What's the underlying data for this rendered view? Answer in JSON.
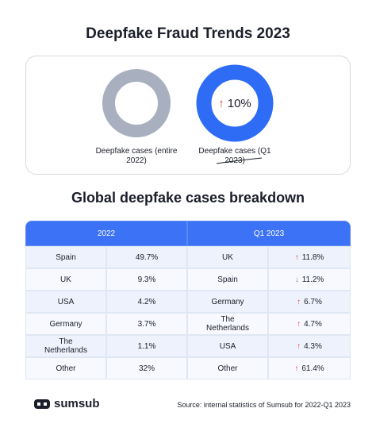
{
  "header": {
    "title": "Deepfake Fraud Trends 2023"
  },
  "donuts": [
    {
      "label": "Deepfake cases (entire 2022)"
    },
    {
      "arrow": "↑",
      "value": "10%",
      "label": "Deepfake cases (Q1 2023)"
    }
  ],
  "breakdown": {
    "title": "Global deepfake cases breakdown"
  },
  "table": {
    "left": {
      "header": "2022",
      "rows": [
        [
          "Spain",
          "49.7%"
        ],
        [
          "UK",
          "9.3%"
        ],
        [
          "USA",
          "4.2%"
        ],
        [
          "Germany",
          "3.7%"
        ],
        [
          "The Netherlands",
          "1.1%"
        ],
        [
          "Other",
          "32%"
        ]
      ]
    },
    "right": {
      "header": "Q1 2023",
      "rows": [
        [
          "UK",
          {
            "arrow": "↑",
            "value": "11.8%"
          }
        ],
        [
          "Spain",
          {
            "arrow": "↓",
            "value": "11.2%"
          }
        ],
        [
          "Germany",
          {
            "arrow": "↑",
            "value": "6.7%"
          }
        ],
        [
          "The Netherlands",
          {
            "arrow": "↑",
            "value": "4.7%"
          }
        ],
        [
          "USA",
          {
            "arrow": "↑",
            "value": "4.3%"
          }
        ],
        [
          "Other",
          {
            "arrow": "↑",
            "value": "61.4%"
          }
        ]
      ]
    }
  },
  "footer": {
    "logo": "sumsub",
    "source": "Source: internal statistics of Sumsub for 2022-Q1 2023"
  }
}
